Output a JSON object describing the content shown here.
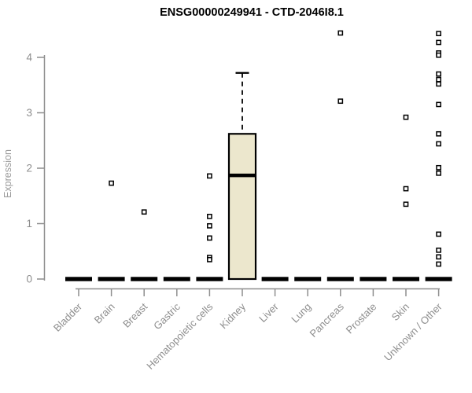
{
  "chart_data": {
    "type": "boxplot",
    "title": "ENSG00000249941 - CTD-2046I8.1",
    "ylabel": "Expression",
    "xlabel": "",
    "ylim": [
      0,
      4.6
    ],
    "yticks": [
      0,
      1,
      2,
      3,
      4
    ],
    "grid": false,
    "legend": "none",
    "categories": [
      "Bladder",
      "Brain",
      "Breast",
      "Gastric",
      "Hematopoietic cells",
      "Kidney",
      "Liver",
      "Lung",
      "Pancreas",
      "Prostate",
      "Skin",
      "Unknown / Other"
    ],
    "series": [
      {
        "category": "Bladder",
        "q1": 0,
        "median": 0,
        "q3": 0,
        "whisker_low": 0,
        "whisker_high": 0,
        "outliers": []
      },
      {
        "category": "Brain",
        "q1": 0,
        "median": 0,
        "q3": 0,
        "whisker_low": 0,
        "whisker_high": 0,
        "outliers": [
          1.73
        ]
      },
      {
        "category": "Breast",
        "q1": 0,
        "median": 0,
        "q3": 0,
        "whisker_low": 0,
        "whisker_high": 0,
        "outliers": [
          1.21
        ]
      },
      {
        "category": "Gastric",
        "q1": 0,
        "median": 0,
        "q3": 0,
        "whisker_low": 0,
        "whisker_high": 0,
        "outliers": []
      },
      {
        "category": "Hematopoietic cells",
        "q1": 0,
        "median": 0,
        "q3": 0,
        "whisker_low": 0,
        "whisker_high": 0,
        "outliers": [
          1.86,
          1.13,
          0.96,
          0.74,
          0.39,
          0.35
        ]
      },
      {
        "category": "Kidney",
        "q1": 0,
        "median": 1.87,
        "q3": 2.62,
        "whisker_low": 0,
        "whisker_high": 3.72,
        "outliers": []
      },
      {
        "category": "Liver",
        "q1": 0,
        "median": 0,
        "q3": 0,
        "whisker_low": 0,
        "whisker_high": 0,
        "outliers": []
      },
      {
        "category": "Lung",
        "q1": 0,
        "median": 0,
        "q3": 0,
        "whisker_low": 0,
        "whisker_high": 0,
        "outliers": []
      },
      {
        "category": "Pancreas",
        "q1": 0,
        "median": 0,
        "q3": 0,
        "whisker_low": 0,
        "whisker_high": 0,
        "outliers": [
          4.44,
          3.21
        ]
      },
      {
        "category": "Prostate",
        "q1": 0,
        "median": 0,
        "q3": 0,
        "whisker_low": 0,
        "whisker_high": 0,
        "outliers": []
      },
      {
        "category": "Skin",
        "q1": 0,
        "median": 0,
        "q3": 0,
        "whisker_low": 0,
        "whisker_high": 0,
        "outliers": [
          2.92,
          1.63,
          1.35
        ]
      },
      {
        "category": "Unknown / Other",
        "q1": 0,
        "median": 0,
        "q3": 0,
        "whisker_low": 0,
        "whisker_high": 0,
        "outliers": [
          4.43,
          4.27,
          4.08,
          4.04,
          3.7,
          3.6,
          3.52,
          3.15,
          2.62,
          2.44,
          2.01,
          1.91,
          0.81,
          0.52,
          0.4,
          0.27
        ]
      }
    ],
    "colors": {
      "box_fill": "#ece7cd",
      "box_border": "#000000",
      "median": "#000000",
      "whisker": "#000000",
      "outlier_fill": "#ffffff",
      "outlier_border": "#000000",
      "axis": "#8e8e8e",
      "tick_label": "#8e8e8e",
      "title": "#000000",
      "background": "#ffffff"
    }
  }
}
